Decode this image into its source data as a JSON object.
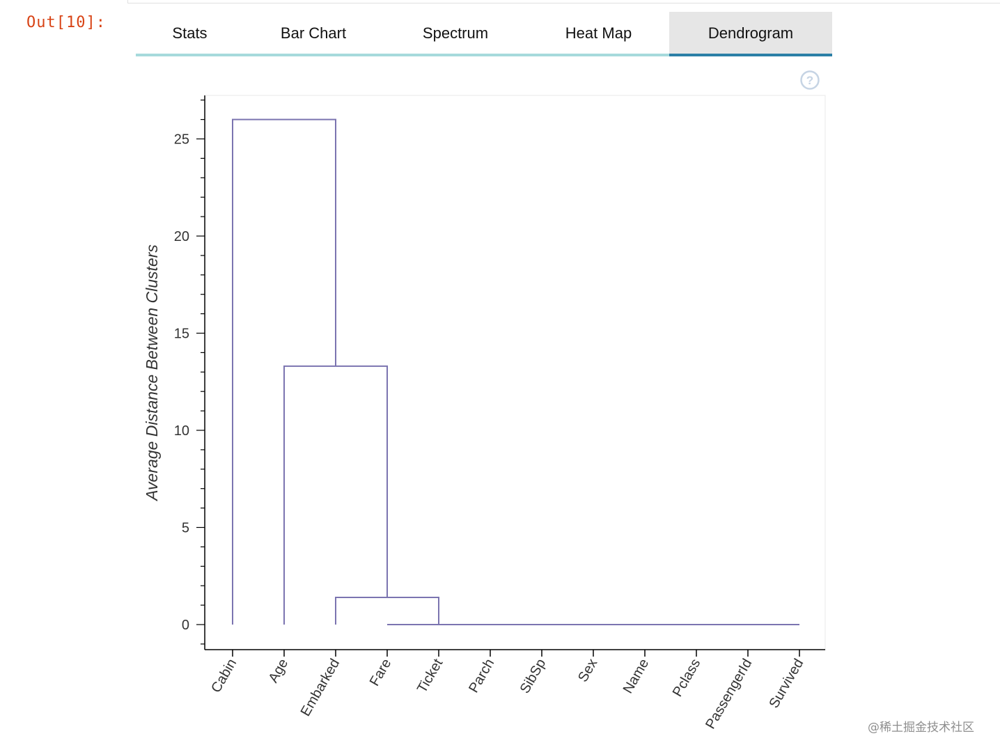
{
  "cell": {
    "prompt": "Out[10]:"
  },
  "tabs": [
    {
      "label": "Stats",
      "active": false
    },
    {
      "label": "Bar Chart",
      "active": false
    },
    {
      "label": "Spectrum",
      "active": false
    },
    {
      "label": "Heat Map",
      "active": false
    },
    {
      "label": "Dendrogram",
      "active": true
    }
  ],
  "help": {
    "icon": "help-circle-icon"
  },
  "colors": {
    "link": "#7b74b0",
    "tab_baseline": "#a6dadc",
    "tab_active_bar": "#2c7fa6",
    "prompt": "#d84315"
  },
  "chart_data": {
    "type": "dendrogram",
    "title": "",
    "xlabel": "",
    "ylabel": "Average Distance Between Clusters",
    "ylim": [
      -1.3,
      27.2
    ],
    "yticks": [
      0,
      5,
      10,
      15,
      20,
      25
    ],
    "leaves": [
      "Cabin",
      "Age",
      "Embarked",
      "Fare",
      "Ticket",
      "Parch",
      "SibSp",
      "Sex",
      "Name",
      "Pclass",
      "PassengerId",
      "Survived"
    ],
    "merges": [
      {
        "left": "Survived",
        "right": "PassengerId",
        "height": 0.0
      },
      {
        "left": "Pclass",
        "right": "cluster(Survived,PassengerId)",
        "height": 0.0
      },
      {
        "left": "Name",
        "right": "cluster(Pclass,...)",
        "height": 0.0
      },
      {
        "left": "Sex",
        "right": "cluster(Name,...)",
        "height": 0.0
      },
      {
        "left": "SibSp",
        "right": "cluster(Sex,...)",
        "height": 0.0
      },
      {
        "left": "Parch",
        "right": "cluster(SibSp,...)",
        "height": 0.0
      },
      {
        "left": "Ticket",
        "right": "cluster(Parch,...)",
        "height": 0.0
      },
      {
        "left": "Fare",
        "right": "cluster(Ticket,...)",
        "height": 0.0
      },
      {
        "left": "Embarked",
        "right": "cluster(Fare,...)",
        "height": 1.4
      },
      {
        "left": "Age",
        "right": "cluster(Embarked,...)",
        "height": 13.3
      },
      {
        "left": "Cabin",
        "right": "cluster(Age,...)",
        "height": 26.0
      }
    ],
    "segments": [
      {
        "x0": 10,
        "x1": 11,
        "h": 0.0,
        "ya": 0.0,
        "yb": 0.0
      },
      {
        "x0": 9,
        "x1": 10.5,
        "h": 0.0,
        "ya": 0.0,
        "yb": 0.0
      },
      {
        "x0": 8,
        "x1": 9.75,
        "h": 0.0,
        "ya": 0.0,
        "yb": 0.0
      },
      {
        "x0": 7,
        "x1": 8.875,
        "h": 0.0,
        "ya": 0.0,
        "yb": 0.0
      },
      {
        "x0": 6,
        "x1": 7.9375,
        "h": 0.0,
        "ya": 0.0,
        "yb": 0.0
      },
      {
        "x0": 5,
        "x1": 6.96875,
        "h": 0.0,
        "ya": 0.0,
        "yb": 0.0
      },
      {
        "x0": 4,
        "x1": 5.984375,
        "h": 0.0,
        "ya": 0.0,
        "yb": 0.0
      },
      {
        "x0": 3,
        "x1": 4.0,
        "h": 0.0,
        "ya": 0.0,
        "yb": 0.0
      },
      {
        "x0": 2,
        "x1": 4.0,
        "h": 1.4,
        "ya": 0.0,
        "yb": 0.0
      },
      {
        "x0": 1,
        "x1": 3.0,
        "h": 13.3,
        "ya": 0.0,
        "yb": 1.4
      },
      {
        "x0": 0,
        "x1": 2.0,
        "h": 26.0,
        "ya": 0.0,
        "yb": 13.3
      }
    ]
  },
  "watermark": "@稀土掘金技术社区"
}
